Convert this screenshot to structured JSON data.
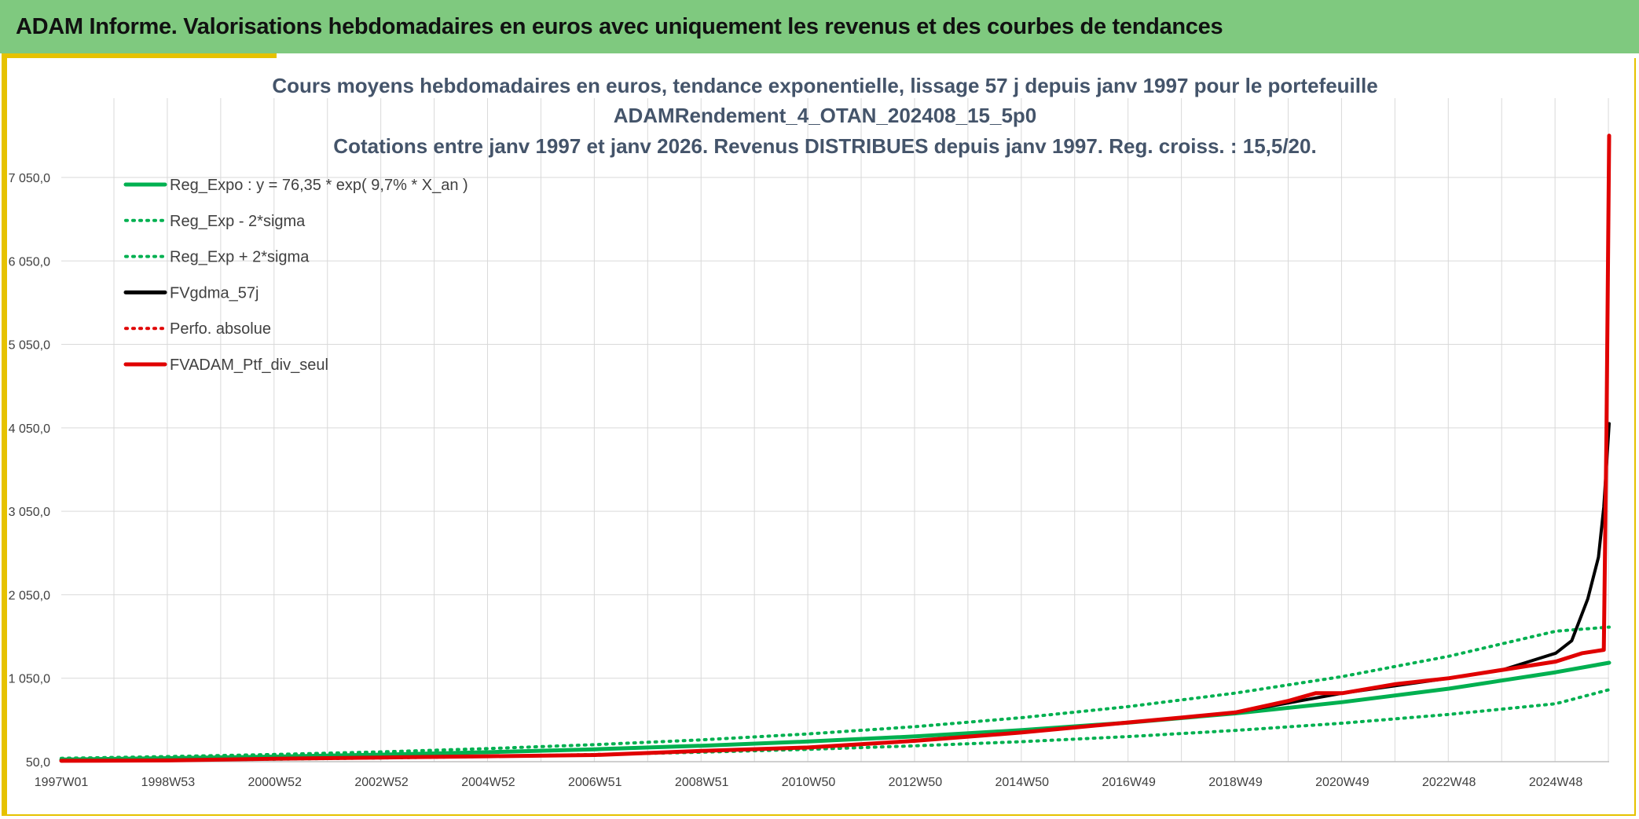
{
  "header": {
    "title": "ADAM Informe. Valorisations hebdomadaires en euros avec uniquement les revenus et des courbes de tendances"
  },
  "colors": {
    "header_bg": "#7fc97f",
    "frame_border": "#e6c200",
    "reg_expo": "#00b050",
    "fvgdma": "#000000",
    "fvadam": "#e00000",
    "grid": "#d9d9d9"
  },
  "chart_data": {
    "type": "line",
    "title_lines": [
      "Cours moyens hebdomadaires en euros, tendance exponentielle, lissage 57 j depuis janv 1997 pour le portefeuille",
      "ADAMRendement_4_OTAN_202408_15_5p0",
      "Cotations entre janv 1997 et janv 2026. Revenus DISTRIBUES depuis janv 1997. Reg. croiss. : 15,5/20."
    ],
    "xlabel": "",
    "ylabel": "",
    "x_tick_labels": [
      "1997W01",
      "1998W53",
      "2000W52",
      "2002W52",
      "2004W52",
      "2006W51",
      "2008W51",
      "2010W50",
      "2012W50",
      "2014W50",
      "2016W49",
      "2018W49",
      "2020W49",
      "2022W48",
      "2024W48"
    ],
    "x_tick_years": [
      1997,
      1999,
      2001,
      2003,
      2005,
      2007,
      2009,
      2011,
      2013,
      2015,
      2017,
      2019,
      2021,
      2023,
      2025
    ],
    "xlim": [
      1997,
      2026
    ],
    "y_tick_labels": [
      "50,0",
      "1 050,0",
      "2 050,0",
      "3 050,0",
      "4 050,0",
      "5 050,0",
      "6 050,0",
      "7 050,0"
    ],
    "y_tick_values": [
      50,
      1050,
      2050,
      3050,
      4050,
      5050,
      6050,
      7050
    ],
    "ylim": [
      50,
      8000
    ],
    "grid": true,
    "legend_position": "top-left",
    "series": [
      {
        "name": "Reg_Expo : y = 76,35 * exp( 9,7% *  X_an )",
        "style": "solid",
        "color": "#00b050",
        "width": 5,
        "x": [
          1997,
          1999,
          2001,
          2003,
          2005,
          2007,
          2009,
          2011,
          2013,
          2015,
          2017,
          2019,
          2021,
          2023,
          2025,
          2026
        ],
        "values": [
          76,
          92,
          111,
          135,
          164,
          199,
          241,
          292,
          353,
          428,
          519,
          629,
          763,
          925,
          1122,
          1235
        ]
      },
      {
        "name": "Reg_Exp - 2*sigma",
        "style": "dotted",
        "color": "#00b050",
        "width": 4,
        "x": [
          1997,
          1999,
          2001,
          2003,
          2005,
          2007,
          2009,
          2011,
          2013,
          2015,
          2017,
          2019,
          2021,
          2023,
          2025,
          2026
        ],
        "values": [
          58,
          68,
          80,
          95,
          113,
          136,
          164,
          198,
          240,
          290,
          351,
          424,
          511,
          616,
          744,
          913
        ]
      },
      {
        "name": "Reg_Exp + 2*sigma",
        "style": "dotted",
        "color": "#00b050",
        "width": 4,
        "x": [
          1997,
          1999,
          2001,
          2003,
          2005,
          2007,
          2009,
          2011,
          2013,
          2015,
          2017,
          2019,
          2021,
          2023,
          2025,
          2026
        ],
        "values": [
          90,
          111,
          137,
          168,
          207,
          254,
          312,
          383,
          470,
          578,
          710,
          872,
          1070,
          1314,
          1614,
          1663
        ]
      },
      {
        "name": "FVgdma_57j",
        "style": "solid",
        "color": "#000000",
        "width": 4,
        "x": [
          1997,
          1999,
          2001,
          2003,
          2005,
          2007,
          2009,
          2011,
          2013,
          2015,
          2017,
          2019,
          2021,
          2023,
          2024,
          2024.5,
          2025,
          2025.3,
          2025.6,
          2025.8,
          2025.9,
          2026
        ],
        "values": [
          60,
          65,
          85,
          100,
          115,
          130,
          180,
          220,
          300,
          400,
          520,
          640,
          870,
          1050,
          1150,
          1250,
          1350,
          1500,
          2000,
          2500,
          3100,
          4100
        ]
      },
      {
        "name": "Perfo. absolue",
        "style": "dotted",
        "color": "#e00000",
        "width": 4,
        "x": [
          1997,
          2026
        ],
        "values": [
          50,
          50
        ],
        "hidden": true
      },
      {
        "name": "FVADAM_Ptf_div_seul",
        "style": "solid",
        "color": "#e00000",
        "width": 5,
        "x": [
          1997,
          1999,
          2001,
          2003,
          2005,
          2007,
          2009,
          2011,
          2013,
          2015,
          2016,
          2017,
          2018,
          2019,
          2020,
          2020.5,
          2021,
          2022,
          2023,
          2024,
          2025,
          2025.5,
          2025.9,
          2025.95,
          2026
        ],
        "values": [
          60,
          65,
          85,
          100,
          115,
          130,
          180,
          220,
          300,
          400,
          460,
          520,
          580,
          640,
          780,
          870,
          870,
          980,
          1050,
          1150,
          1250,
          1350,
          1390,
          4000,
          7550
        ]
      }
    ]
  }
}
